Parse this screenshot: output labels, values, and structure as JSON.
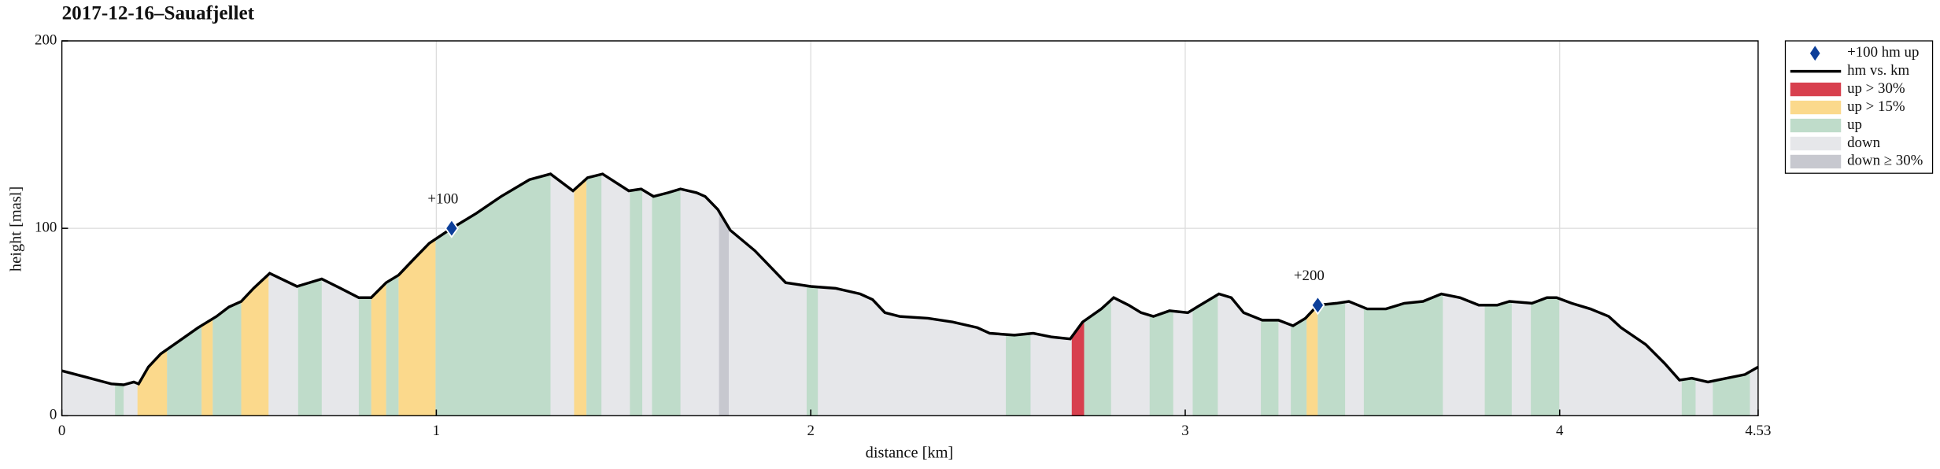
{
  "chart_data": {
    "type": "elevation-profile",
    "title": "2017-12-16–Sauafjellet",
    "xlabel": "distance [km]",
    "ylabel": "height [masl]",
    "xlim": [
      0,
      4.53
    ],
    "ylim": [
      0,
      200
    ],
    "xticks": [
      0,
      1,
      2,
      3,
      4,
      4.53
    ],
    "yticks": [
      0,
      100,
      200
    ],
    "grid": true,
    "x": [
      0,
      0.066,
      0.132,
      0.165,
      0.192,
      0.205,
      0.231,
      0.264,
      0.314,
      0.364,
      0.413,
      0.446,
      0.479,
      0.512,
      0.555,
      0.628,
      0.694,
      0.744,
      0.793,
      0.826,
      0.866,
      0.899,
      0.942,
      0.981,
      1.041,
      1.107,
      1.173,
      1.249,
      1.305,
      1.365,
      1.404,
      1.444,
      1.514,
      1.547,
      1.58,
      1.619,
      1.652,
      1.695,
      1.718,
      1.752,
      1.785,
      1.851,
      1.933,
      2.0,
      2.066,
      2.132,
      2.165,
      2.198,
      2.237,
      2.313,
      2.379,
      2.445,
      2.478,
      2.544,
      2.594,
      2.644,
      2.693,
      2.726,
      2.776,
      2.809,
      2.849,
      2.882,
      2.915,
      2.958,
      3.007,
      3.04,
      3.09,
      3.123,
      3.156,
      3.206,
      3.249,
      3.288,
      3.321,
      3.354,
      3.404,
      3.437,
      3.486,
      3.536,
      3.585,
      3.635,
      3.684,
      3.734,
      3.784,
      3.833,
      3.866,
      3.926,
      3.966,
      3.992,
      4.032,
      4.082,
      4.131,
      4.164,
      4.23,
      4.28,
      4.32,
      4.353,
      4.396,
      4.445,
      4.495,
      4.53
    ],
    "series": [
      {
        "name": "hm vs. km",
        "color": "#000000",
        "values": [
          24,
          20.5,
          17,
          16.5,
          18,
          17,
          26,
          33,
          40,
          47,
          53,
          58,
          61,
          68,
          76,
          69,
          73,
          68,
          63,
          63,
          71,
          75,
          84,
          92,
          100,
          108,
          117,
          126,
          129,
          120,
          127,
          129,
          120,
          121,
          117,
          119,
          121,
          119,
          117,
          110,
          99,
          88,
          71,
          69,
          68,
          65,
          62,
          55,
          53,
          52,
          50,
          47,
          44,
          43,
          44,
          42,
          41,
          50,
          57,
          63,
          59,
          55,
          53,
          56,
          55,
          59,
          65,
          63,
          55,
          51,
          51,
          48,
          52,
          59,
          60,
          61,
          57,
          57,
          60,
          61,
          65,
          63,
          59,
          59,
          61,
          60,
          63,
          63,
          60,
          57,
          53,
          47,
          38,
          28,
          19,
          20,
          18,
          20,
          22,
          26
        ]
      }
    ],
    "markers": {
      "name": "+100 hm up",
      "color": "#0d3f9a",
      "x": [
        1.041,
        3.354
      ],
      "values": [
        100,
        59
      ],
      "labels": [
        "+100",
        "+200"
      ]
    },
    "bands": [
      {
        "name": "up > 30%",
        "color": "#d8404e",
        "ranges": [
          [
            2.697,
            2.73
          ]
        ]
      },
      {
        "name": "up > 15%",
        "color": "#fbd98c",
        "ranges": [
          [
            0.202,
            0.281
          ],
          [
            0.373,
            0.403
          ],
          [
            0.479,
            0.552
          ],
          [
            0.826,
            0.866
          ],
          [
            0.899,
            0.998
          ],
          [
            1.368,
            1.401
          ],
          [
            3.324,
            3.354
          ]
        ]
      },
      {
        "name": "up",
        "color": "#bfdcca",
        "ranges": [
          [
            0.142,
            0.165
          ],
          [
            0.281,
            0.373
          ],
          [
            0.403,
            0.479
          ],
          [
            0.631,
            0.694
          ],
          [
            0.793,
            0.826
          ],
          [
            0.866,
            0.899
          ],
          [
            0.998,
            1.305
          ],
          [
            1.401,
            1.441
          ],
          [
            1.517,
            1.55
          ],
          [
            1.576,
            1.652
          ],
          [
            1.989,
            2.019
          ],
          [
            2.521,
            2.587
          ],
          [
            2.73,
            2.802
          ],
          [
            2.905,
            2.968
          ],
          [
            3.02,
            3.087
          ],
          [
            3.202,
            3.249
          ],
          [
            3.282,
            3.324
          ],
          [
            3.354,
            3.427
          ],
          [
            3.477,
            3.688
          ],
          [
            3.8,
            3.872
          ],
          [
            3.923,
            3.999
          ],
          [
            4.326,
            4.363
          ],
          [
            4.409,
            4.508
          ]
        ]
      },
      {
        "name": "down",
        "color": "#e6e7ea"
      },
      {
        "name": "down ≥ 30%",
        "color": "#c7c8cf",
        "ranges": [
          [
            1.755,
            1.781
          ]
        ]
      }
    ]
  }
}
